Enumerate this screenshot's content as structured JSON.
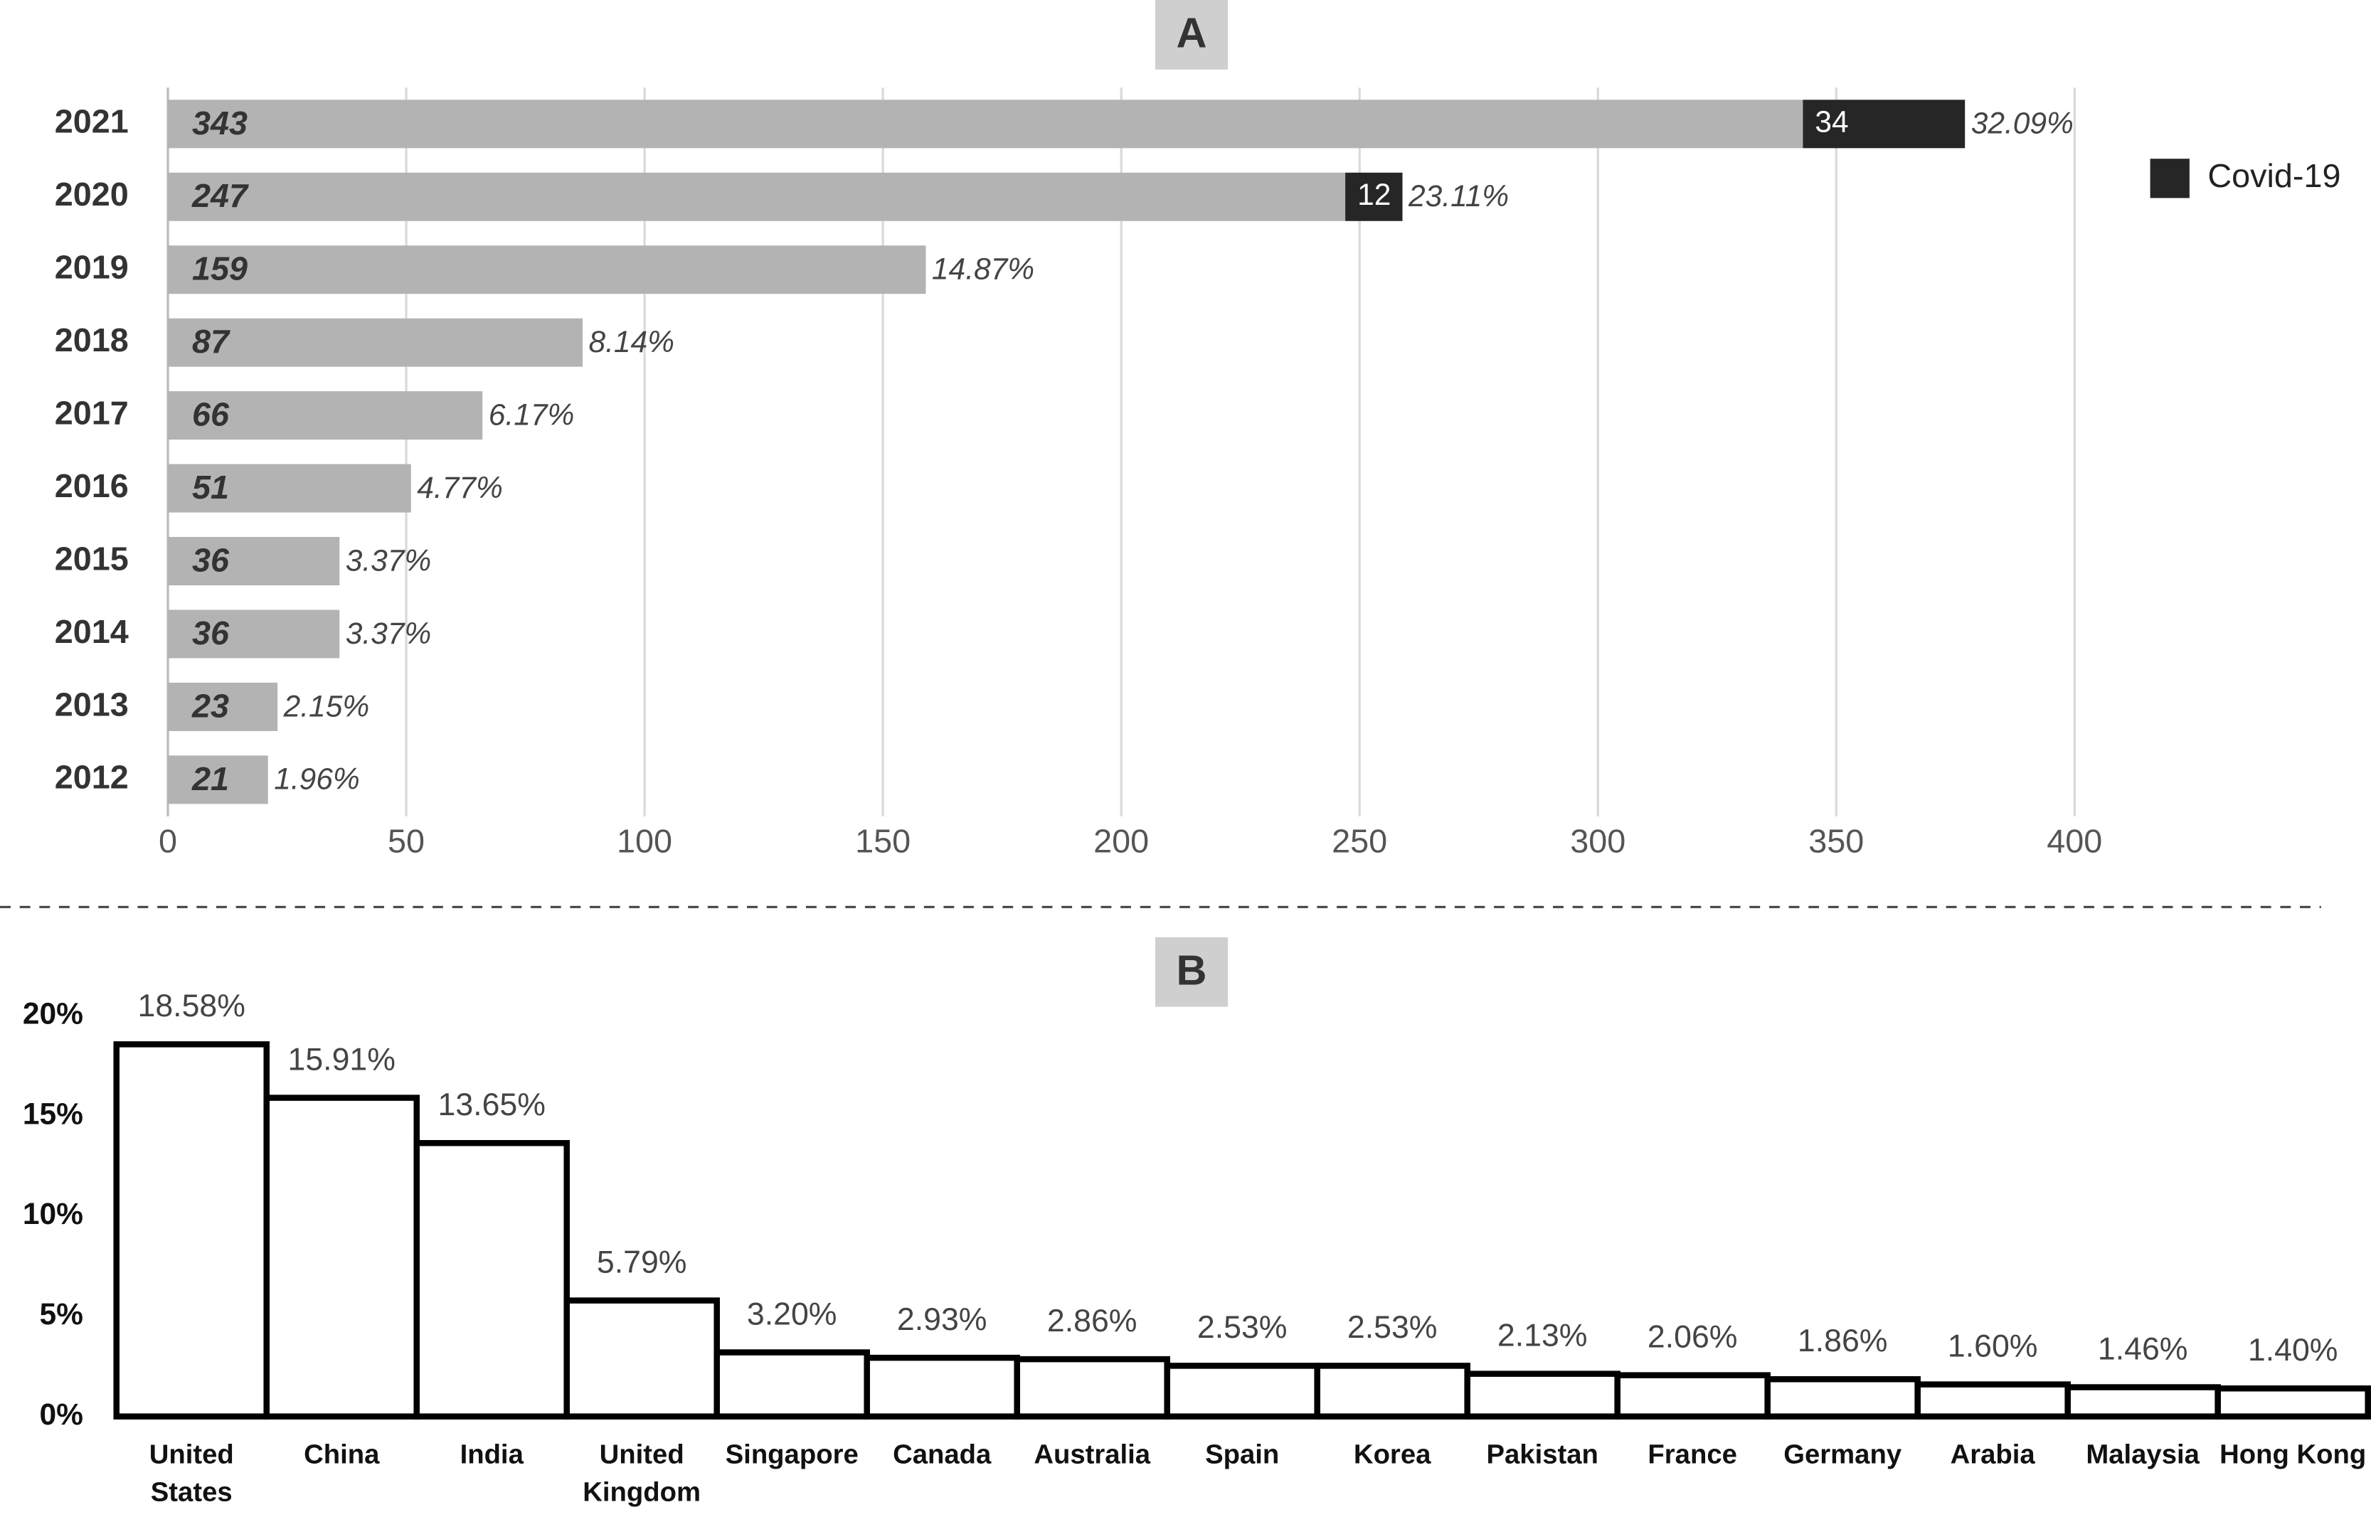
{
  "chart_data": [
    {
      "type": "stackedbar",
      "panel_label": "A",
      "categories": [
        "2021",
        "2020",
        "2019",
        "2018",
        "2017",
        "2016",
        "2015",
        "2014",
        "2013",
        "2012"
      ],
      "series": [
        {
          "color": "#b3b3b3",
          "values": [
            343,
            247,
            159,
            87,
            66,
            51,
            36,
            36,
            23,
            21
          ]
        },
        {
          "name": "Covid-19",
          "color": "#262626",
          "values": [
            34,
            12,
            null,
            null,
            null,
            null,
            null,
            null,
            null,
            null
          ]
        }
      ],
      "shares": {
        "values": [
          32.09,
          23.11,
          14.87,
          8.14,
          6.17,
          4.77,
          3.37,
          3.37,
          2.15,
          1.96
        ],
        "value_labels": [
          "32.09%",
          "23.11%",
          "14.87%",
          "8.14%",
          "6.17%",
          "4.77%",
          "3.37%",
          "3.37%",
          "2.15%",
          "1.96%"
        ]
      },
      "xlim": [
        0,
        400
      ],
      "xticks": [
        0,
        50,
        100,
        150,
        200,
        250,
        300,
        350,
        400
      ],
      "grid": true,
      "legend": "right"
    },
    {
      "type": "bar",
      "panel_label": "B",
      "categories": [
        "United States",
        "China",
        "India",
        "United Kingdom",
        "Singapore",
        "Canada",
        "Australia",
        "Spain",
        "Korea",
        "Pakistan",
        "France",
        "Germany",
        "Arabia",
        "Malaysia",
        "Hong Kong"
      ],
      "values": [
        18.58,
        15.91,
        13.65,
        5.79,
        3.2,
        2.93,
        2.86,
        2.53,
        2.53,
        2.13,
        2.06,
        1.86,
        1.6,
        1.46,
        1.4
      ],
      "value_labels": [
        "18.58%",
        "15.91%",
        "13.65%",
        "5.79%",
        "3.20%",
        "2.93%",
        "2.86%",
        "2.53%",
        "2.53%",
        "2.13%",
        "2.06%",
        "1.86%",
        "1.60%",
        "1.46%",
        "1.40%"
      ],
      "color": "#ffffff",
      "edge_color": "#000000",
      "ylim": [
        0,
        20
      ],
      "yticks": [
        {
          "value": 0,
          "label": "0%"
        },
        {
          "value": 5,
          "label": "5%"
        },
        {
          "value": 10,
          "label": "10%"
        },
        {
          "value": 15,
          "label": "15%"
        },
        {
          "value": 20,
          "label": "20%"
        }
      ]
    }
  ]
}
